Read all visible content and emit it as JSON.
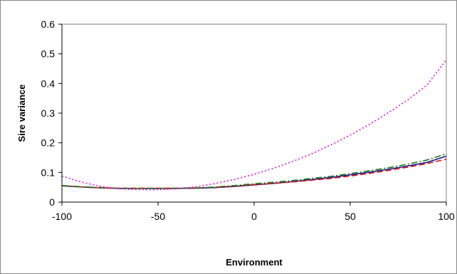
{
  "chart_data": {
    "type": "line",
    "xlabel": "Environment",
    "ylabel": "Sire variance",
    "xlim": [
      -100,
      100
    ],
    "ylim": [
      0,
      0.6
    ],
    "xticks": [
      "-100",
      "-50",
      "0",
      "50",
      "100"
    ],
    "yticks": [
      "0",
      "0.1",
      "0.2",
      "0.3",
      "0.4",
      "0.5",
      "0.6"
    ],
    "grid": false,
    "legend": "none",
    "series": [
      {
        "color": "#1a1a8c",
        "style": "solid",
        "x": [
          -100,
          -90,
          -80,
          -70,
          -60,
          -50,
          -40,
          -30,
          -20,
          -10,
          0,
          10,
          20,
          30,
          40,
          50,
          60,
          70,
          80,
          90,
          100
        ],
        "y": [
          0.055,
          0.051,
          0.048,
          0.046,
          0.046,
          0.046,
          0.046,
          0.047,
          0.049,
          0.053,
          0.058,
          0.063,
          0.069,
          0.076,
          0.083,
          0.092,
          0.101,
          0.111,
          0.122,
          0.134,
          0.155
        ]
      },
      {
        "color": "#e01010",
        "style": "dashed",
        "x": [
          -100,
          -90,
          -80,
          -70,
          -60,
          -50,
          -40,
          -30,
          -20,
          -10,
          0,
          10,
          20,
          30,
          40,
          50,
          60,
          70,
          80,
          90,
          100
        ],
        "y": [
          0.055,
          0.051,
          0.048,
          0.047,
          0.047,
          0.047,
          0.047,
          0.048,
          0.05,
          0.054,
          0.059,
          0.063,
          0.068,
          0.074,
          0.08,
          0.088,
          0.097,
          0.107,
          0.118,
          0.13,
          0.145
        ]
      },
      {
        "color": "#1a7a1a",
        "style": "dashdot",
        "x": [
          -100,
          -90,
          -80,
          -70,
          -60,
          -50,
          -40,
          -30,
          -20,
          -10,
          0,
          10,
          20,
          30,
          40,
          50,
          60,
          70,
          80,
          90,
          100
        ],
        "y": [
          0.056,
          0.052,
          0.049,
          0.047,
          0.046,
          0.046,
          0.047,
          0.048,
          0.051,
          0.056,
          0.062,
          0.067,
          0.073,
          0.08,
          0.087,
          0.096,
          0.106,
          0.116,
          0.128,
          0.142,
          0.163
        ]
      },
      {
        "color": "#e010e0",
        "style": "dotted",
        "x": [
          -100,
          -90,
          -80,
          -70,
          -60,
          -50,
          -40,
          -30,
          -20,
          -10,
          0,
          10,
          20,
          30,
          40,
          50,
          60,
          70,
          80,
          90,
          100
        ],
        "y": [
          0.088,
          0.068,
          0.053,
          0.045,
          0.042,
          0.042,
          0.045,
          0.052,
          0.063,
          0.077,
          0.094,
          0.114,
          0.137,
          0.163,
          0.193,
          0.226,
          0.262,
          0.302,
          0.345,
          0.395,
          0.48
        ]
      }
    ]
  }
}
